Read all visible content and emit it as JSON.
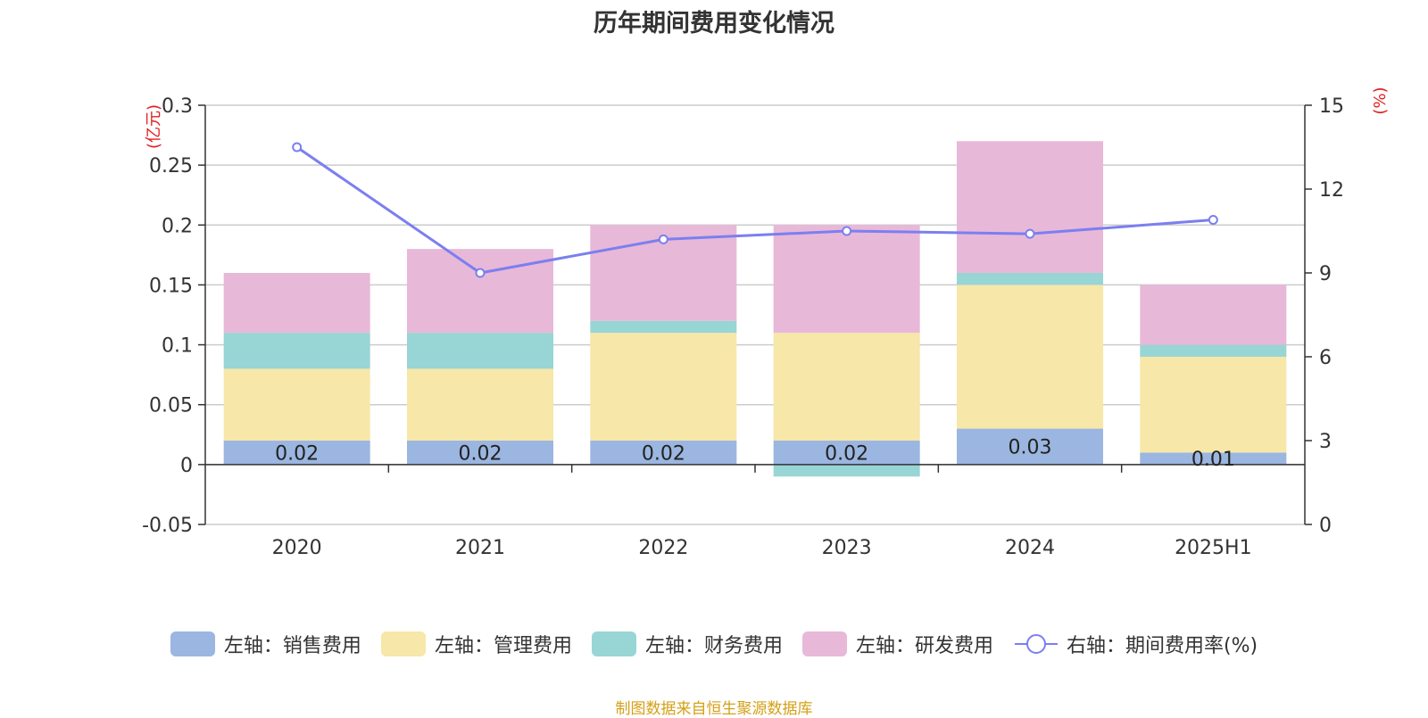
{
  "chart_data": {
    "type": "bar",
    "title": "历年期间费用变化情况",
    "categories": [
      "2020",
      "2021",
      "2022",
      "2023",
      "2024",
      "2025H1"
    ],
    "stacked": true,
    "y_left": {
      "unit_label": "(亿元)",
      "min": -0.05,
      "max": 0.3,
      "ticks": [
        "-0.05",
        "0",
        "0.05",
        "0.1",
        "0.15",
        "0.2",
        "0.25",
        "0.3"
      ]
    },
    "y_right": {
      "unit_label": "(%)",
      "min": 0,
      "max": 15,
      "ticks": [
        "0",
        "3",
        "6",
        "9",
        "12",
        "15"
      ]
    },
    "series": [
      {
        "name": "左轴：销售费用",
        "axis": "left",
        "kind": "bar",
        "color": "#9bb6e0",
        "values": [
          0.02,
          0.02,
          0.02,
          0.02,
          0.03,
          0.01
        ],
        "data_labels": [
          "0.02",
          "0.02",
          "0.02",
          "0.02",
          "0.03",
          "0.01"
        ]
      },
      {
        "name": "左轴：管理费用",
        "axis": "left",
        "kind": "bar",
        "color": "#f7e7a8",
        "values": [
          0.06,
          0.06,
          0.09,
          0.09,
          0.12,
          0.08
        ]
      },
      {
        "name": "左轴：财务费用",
        "axis": "left",
        "kind": "bar",
        "color": "#98d5d5",
        "values": [
          0.03,
          0.03,
          0.01,
          -0.01,
          0.01,
          0.01
        ]
      },
      {
        "name": "左轴：研发费用",
        "axis": "left",
        "kind": "bar",
        "color": "#e8b8d8",
        "values": [
          0.05,
          0.07,
          0.08,
          0.09,
          0.11,
          0.05
        ]
      },
      {
        "name": "右轴：期间费用率(%)",
        "axis": "right",
        "kind": "line",
        "color": "#7b7ff0",
        "values": [
          13.5,
          9.0,
          10.2,
          10.5,
          10.4,
          10.9
        ]
      }
    ],
    "legend_position": "bottom",
    "grid": true
  },
  "source_note": "制图数据来自恒生聚源数据库"
}
